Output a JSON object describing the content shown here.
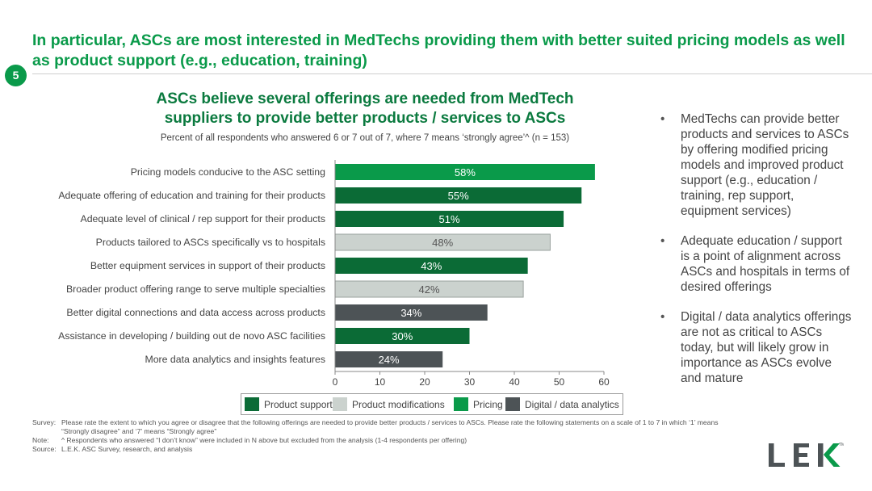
{
  "page": {
    "badge": "5",
    "title": "In particular, ASCs are most interested in MedTechs providing them with better suited pricing models as well as product support (e.g., education, training)"
  },
  "chart_title": "ASCs believe several offerings are needed from MedTech suppliers to provide better products / services to ASCs",
  "chart_subtitle": "Percent of all respondents who answered 6 or 7 out of 7, where 7 means ‘strongly agree’^ (n = 153)",
  "colors": {
    "Product support": "#0b6b36",
    "Product modifications": "#cbd2ce",
    "Pricing": "#0a9a4a",
    "Digital / data analytics": "#4d5356"
  },
  "chart_data": {
    "type": "bar",
    "orientation": "horizontal",
    "categories": [
      "Pricing models conducive to the ASC setting",
      "Adequate offering of education and training for their products",
      "Adequate level of clinical / rep support for their products",
      "Products tailored to ASCs specifically vs to hospitals",
      "Better equipment services in support of their products",
      "Broader product offering range to serve multiple specialties",
      "Better digital connections and data access across products",
      "Assistance in developing / building out de novo ASC facilities",
      "More data analytics and insights features"
    ],
    "values": [
      58,
      55,
      51,
      48,
      43,
      42,
      34,
      30,
      24
    ],
    "labels": [
      "58%",
      "55%",
      "51%",
      "48%",
      "43%",
      "42%",
      "34%",
      "30%",
      "24%"
    ],
    "groups": [
      "Pricing",
      "Product support",
      "Product support",
      "Product modifications",
      "Product support",
      "Product modifications",
      "Digital / data analytics",
      "Product support",
      "Digital / data analytics"
    ],
    "xlim": [
      0,
      60
    ],
    "xticks": [
      0,
      10,
      20,
      30,
      40,
      50,
      60
    ],
    "xtick_labels": [
      "0",
      "10",
      "20",
      "30",
      "40",
      "50",
      "60"
    ],
    "legend": [
      "Product support",
      "Product modifications",
      "Pricing",
      "Digital / data analytics"
    ]
  },
  "bullets": [
    "MedTechs can provide better products and services to ASCs by offering modified pricing models and improved product support (e.g., education / training, rep support, equipment services)",
    "Adequate education / support is a point of alignment across ASCs and hospitals in terms of desired offerings",
    "Digital / data analytics offerings are not as critical to ASCs today, but will likely grow in importance as ASCs evolve and mature"
  ],
  "notes": {
    "survey_key": "Survey:",
    "survey": "Please rate the extent to which you agree or disagree that the following offerings are needed to provide better products / services to ASCs. Please rate the following statements on a scale of 1 to 7 in which ‘1’ means “Strongly disagree” and ‘7’ means “Strongly agree”",
    "note_key": "Note:",
    "note": "^ Respondents who answered “I don’t know” were included in N above but excluded from the analysis (1-4 respondents per offering)",
    "source_key": "Source:",
    "source": "L.E.K. ASC Survey, research, and analysis"
  },
  "logo": {
    "text": "LEK",
    "tm": "TM"
  }
}
